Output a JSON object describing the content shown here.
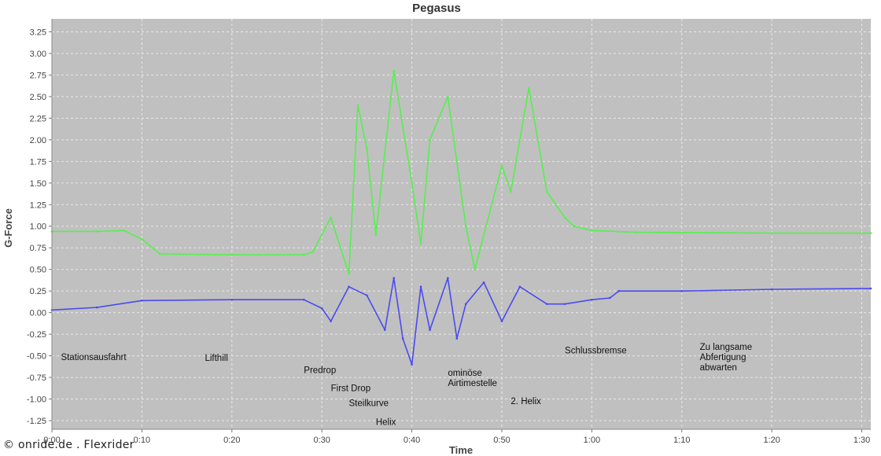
{
  "chart_data": {
    "type": "line",
    "title": "Pegasus",
    "xlabel": "Time",
    "ylabel": "G-Force",
    "xlim": [
      "0:00",
      "1:31"
    ],
    "ylim": [
      -1.35,
      3.4
    ],
    "grid": true,
    "x_ticks": [
      "0:00",
      "0:10",
      "0:20",
      "0:30",
      "0:40",
      "0:50",
      "1:00",
      "1:10",
      "1:20",
      "1:30"
    ],
    "y_ticks": [
      "3.25",
      "3.00",
      "2.75",
      "2.50",
      "2.25",
      "2.00",
      "1.75",
      "1.50",
      "1.25",
      "1.00",
      "0.75",
      "0.50",
      "0.25",
      "0.00",
      "-0.25",
      "-0.50",
      "-0.75",
      "-1.00",
      "-1.25"
    ],
    "colors": {
      "series_green": "#55f04d",
      "series_blue": "#4a4af0",
      "plot_background": "#c0c0c0",
      "grid": "#e8e8e8"
    },
    "series": [
      {
        "x": [
          "0:00",
          "0:05",
          "0:08",
          "0:10",
          "0:12",
          "0:20",
          "0:28",
          "0:29",
          "0:31",
          "0:33",
          "0:34",
          "0:35",
          "0:36",
          "0:38",
          "0:40",
          "0:41",
          "0:42",
          "0:44",
          "0:46",
          "0:47",
          "0:50",
          "0:51",
          "0:53",
          "0:55",
          "0:57",
          "0:58",
          "1:00",
          "1:05",
          "1:20",
          "1:31"
        ],
        "values": [
          0.94,
          0.94,
          0.95,
          0.85,
          0.68,
          0.67,
          0.67,
          0.7,
          1.1,
          0.45,
          2.4,
          1.9,
          0.9,
          2.8,
          1.5,
          0.8,
          2.0,
          2.5,
          1.0,
          0.5,
          1.7,
          1.4,
          2.6,
          1.4,
          1.1,
          1.0,
          0.95,
          0.93,
          0.92,
          0.92
        ]
      },
      {
        "x": [
          "0:00",
          "0:05",
          "0:10",
          "0:20",
          "0:28",
          "0:30",
          "0:31",
          "0:33",
          "0:35",
          "0:37",
          "0:38",
          "0:39",
          "0:40",
          "0:41",
          "0:42",
          "0:44",
          "0:45",
          "0:46",
          "0:48",
          "0:50",
          "0:52",
          "0:55",
          "0:57",
          "1:00",
          "1:02",
          "1:03",
          "1:10",
          "1:20",
          "1:31"
        ],
        "values": [
          0.03,
          0.06,
          0.14,
          0.15,
          0.15,
          0.05,
          -0.1,
          0.3,
          0.2,
          -0.2,
          0.4,
          -0.3,
          -0.6,
          0.3,
          -0.2,
          0.4,
          -0.3,
          0.1,
          0.35,
          -0.1,
          0.3,
          0.1,
          0.1,
          0.15,
          0.17,
          0.25,
          0.25,
          0.27,
          0.28
        ]
      }
    ],
    "annotations": [
      {
        "text": [
          "Stationsausfahrt"
        ],
        "x": "0:01",
        "y": -0.55
      },
      {
        "text": [
          "Lifthill"
        ],
        "x": "0:17",
        "y": -0.56
      },
      {
        "text": [
          "Predrop"
        ],
        "x": "0:28",
        "y": -0.7
      },
      {
        "text": [
          "First Drop"
        ],
        "x": "0:31",
        "y": -0.91
      },
      {
        "text": [
          "Steilkurve"
        ],
        "x": "0:33",
        "y": -1.08
      },
      {
        "text": [
          "Helix"
        ],
        "x": "0:36",
        "y": -1.3
      },
      {
        "text": [
          "ominöse",
          "Airtimestelle"
        ],
        "x": "0:44",
        "y": -0.73
      },
      {
        "text": [
          "2. Helix"
        ],
        "x": "0:51",
        "y": -1.06
      },
      {
        "text": [
          "Schlussbremse"
        ],
        "x": "0:57",
        "y": -0.47
      },
      {
        "text": [
          "Zu langsame",
          "Abfertigung",
          "abwarten"
        ],
        "x": "1:12",
        "y": -0.43
      }
    ]
  },
  "credit": "© onride.de . Flexrider"
}
